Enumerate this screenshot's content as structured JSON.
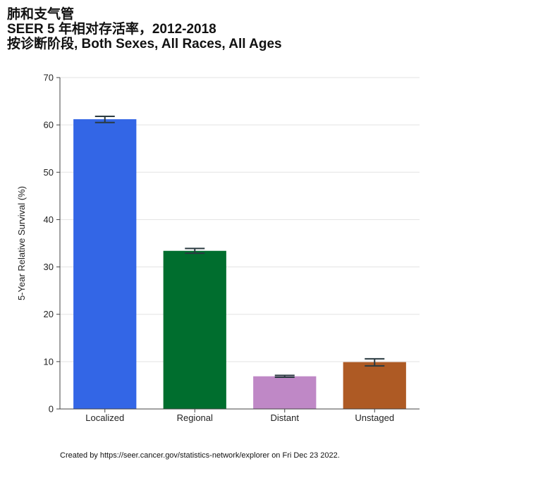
{
  "title_lines": [
    "肺和支气管",
    "SEER 5 年相对存活率，2012-2018",
    "按诊断阶段, Both Sexes, All Races, All Ages"
  ],
  "footer": "Created by https://seer.cancer.gov/statistics-network/explorer on Fri Dec 23 2022.",
  "chart_data": {
    "type": "bar",
    "categories": [
      "Localized",
      "Regional",
      "Distant",
      "Unstaged"
    ],
    "values": [
      61.2,
      33.4,
      6.9,
      9.9
    ],
    "error_low": [
      60.5,
      32.9,
      6.7,
      9.1
    ],
    "error_high": [
      61.8,
      33.9,
      7.1,
      10.6
    ],
    "colors": [
      "#3366e6",
      "#006e2e",
      "#bf88c6",
      "#ae5a24"
    ],
    "ylabel": "5-Year Relative Survival (%)",
    "xlabel": "",
    "ylim": [
      0,
      70
    ],
    "yticks": [
      0,
      10,
      20,
      30,
      40,
      50,
      60,
      70
    ],
    "grid": true
  }
}
